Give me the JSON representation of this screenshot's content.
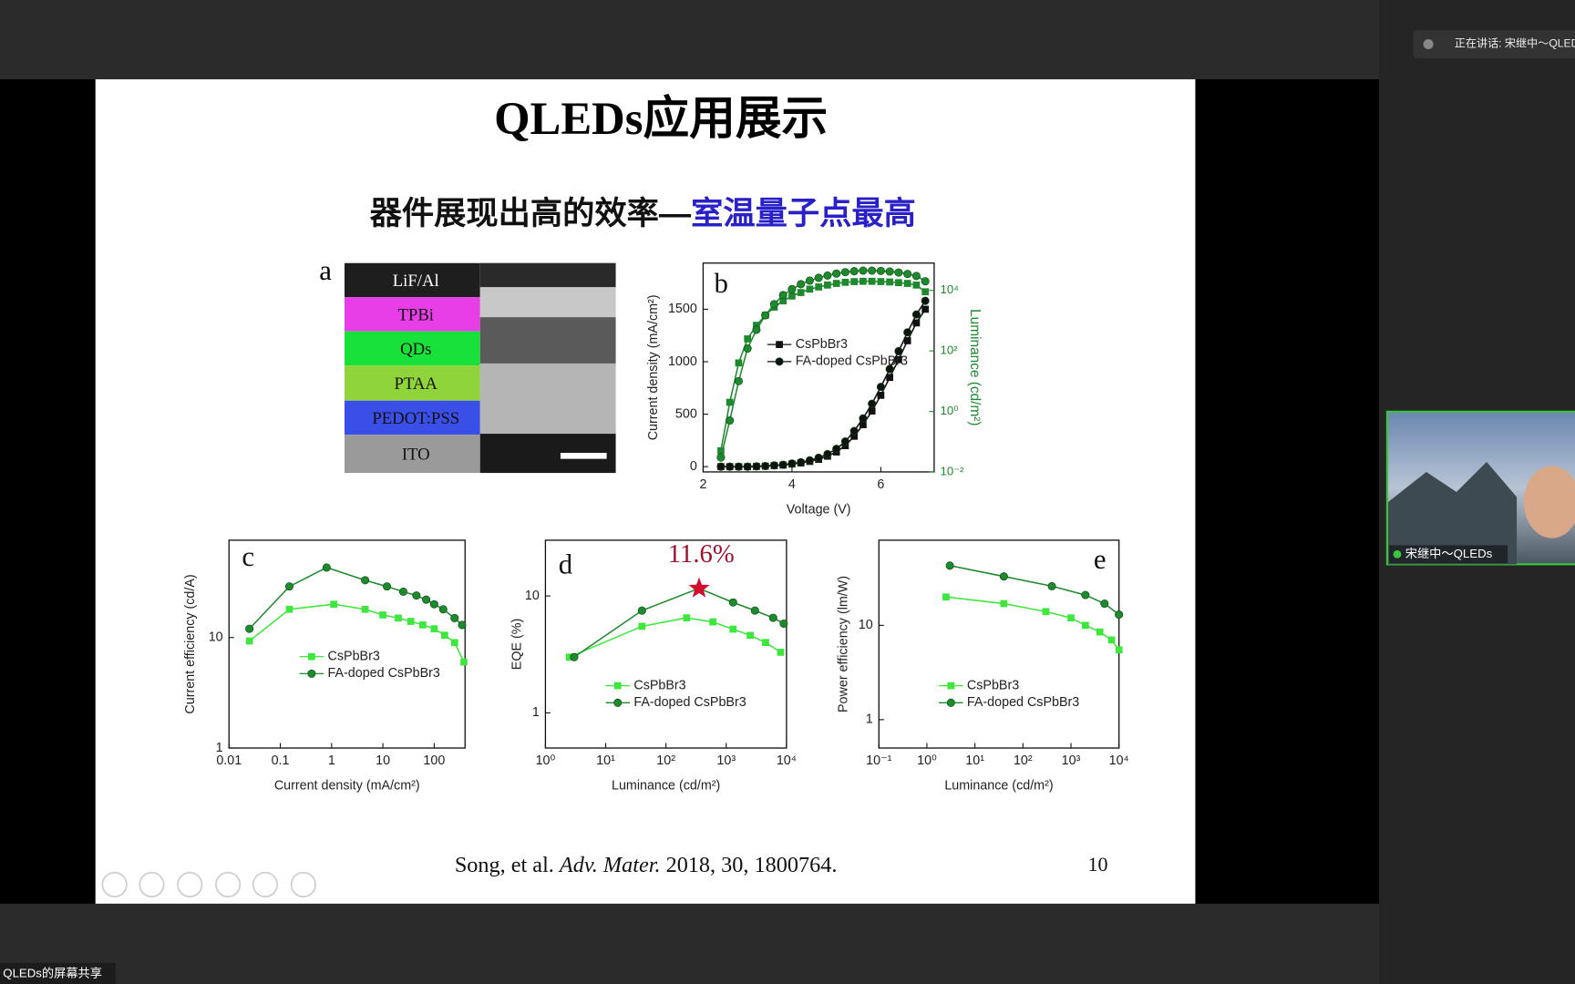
{
  "app": {
    "speaking": "正在讲话: 宋继中～QLEDs",
    "video_label": "宋继中～QLEDs",
    "share_label": "QLEDs的屏幕共享"
  },
  "slide": {
    "title": "QLEDs应用展示",
    "subtitle_black": "器件展现出高的效率—",
    "subtitle_blue": "室温量子点最高",
    "citation": [
      "Song, et al. ",
      "Adv. Mater.",
      "  2018, 30, 1800764."
    ],
    "page": 10,
    "panel_a": {
      "label": "a",
      "layers": [
        "LiF/Al",
        "TPBi",
        "QDs",
        "PTAA",
        "PEDOT:PSS",
        "ITO"
      ]
    }
  },
  "chart_data": [
    {
      "type": "line",
      "panel": "b",
      "xlabel": "Voltage (V)",
      "ylabel": "Current density (mA/cm²)",
      "y2label": "Luminance (cd/m²)",
      "xlim": [
        2,
        7.2
      ],
      "xticks": [
        2,
        4,
        6
      ],
      "ylim": [
        -50,
        1940
      ],
      "yticks": [
        0,
        500,
        1000,
        1500
      ],
      "y2scale": "log",
      "y2lim": [
        0.01,
        80000
      ],
      "y2ticks": [
        {
          "value": 0.01,
          "label": "10⁻²"
        },
        {
          "value": 1,
          "label": "10⁰"
        },
        {
          "value": 100,
          "label": "10²"
        },
        {
          "value": 10000,
          "label": "10⁴"
        }
      ],
      "legend": "center",
      "x": [
        2.4,
        2.6,
        2.8,
        3.0,
        3.2,
        3.4,
        3.6,
        3.8,
        4.0,
        4.2,
        4.4,
        4.6,
        4.8,
        5.0,
        5.2,
        5.4,
        5.6,
        5.8,
        6.0,
        6.2,
        6.4,
        6.6,
        6.8,
        7.0
      ],
      "series": [
        {
          "name": "CsPbBr3",
          "color": "#111111",
          "marker": "square",
          "values": [
            0,
            0,
            0,
            0,
            2,
            5,
            10,
            15,
            25,
            35,
            50,
            70,
            100,
            140,
            200,
            290,
            400,
            530,
            680,
            850,
            1020,
            1200,
            1370,
            1500
          ]
        },
        {
          "name": "FA-doped CsPbBr3",
          "color": "#111111",
          "marker": "circle",
          "values": [
            0,
            0,
            0,
            0,
            3,
            6,
            12,
            18,
            30,
            42,
            60,
            85,
            120,
            170,
            240,
            340,
            460,
            600,
            760,
            930,
            1100,
            1280,
            1450,
            1580
          ]
        },
        {
          "color": "#1e8a2e",
          "marker": "square",
          "axis": "y2",
          "values": [
            0.05,
            2,
            40,
            250,
            700,
            1500,
            2800,
            4500,
            6500,
            8500,
            11000,
            13000,
            15000,
            17000,
            18500,
            19500,
            20000,
            20000,
            19500,
            19000,
            18000,
            17000,
            15000,
            9000
          ]
        },
        {
          "color": "#1e8a2e",
          "marker": "circle",
          "axis": "y2",
          "values": [
            0.03,
            0.5,
            10,
            120,
            500,
            1500,
            3500,
            7000,
            11000,
            16000,
            21000,
            26000,
            31000,
            36000,
            40000,
            43000,
            45000,
            45000,
            44000,
            42000,
            39000,
            35000,
            30000,
            20000
          ]
        }
      ]
    },
    {
      "type": "line",
      "panel": "c",
      "xlabel": "Current density (mA/cm²)",
      "ylabel": "Current efficiency (cd/A)",
      "xscale": "log",
      "xlim": [
        0.01,
        400
      ],
      "xticks": [
        0.01,
        0.1,
        1,
        10,
        100
      ],
      "yscale": "log",
      "ylim": [
        1,
        76
      ],
      "yticks": [
        1,
        10
      ],
      "legend": "center left",
      "series": [
        {
          "name": "CsPbBr3",
          "color": "#3ee63e",
          "marker": "square",
          "x": [
            0.025,
            0.15,
            1.1,
            4.5,
            10,
            20,
            35,
            60,
            100,
            160,
            250,
            380
          ],
          "values": [
            9.3,
            18,
            20,
            18,
            16,
            15,
            14,
            13,
            12,
            10.5,
            9,
            6
          ]
        },
        {
          "name": "FA-doped CsPbBr3",
          "color": "#1e8a2e",
          "marker": "circle",
          "x": [
            0.025,
            0.15,
            0.8,
            4.5,
            12,
            25,
            45,
            70,
            100,
            150,
            250,
            350
          ],
          "values": [
            12,
            29,
            43,
            33,
            29,
            26,
            24,
            22,
            20,
            18,
            15,
            13
          ]
        }
      ]
    },
    {
      "type": "line",
      "panel": "d",
      "xlabel": "Luminance (cd/m²)",
      "ylabel": "EQE (%)",
      "xscale": "log",
      "xlim": [
        1,
        10000
      ],
      "xticks": [
        {
          "value": 1,
          "label": "10⁰"
        },
        {
          "value": 10,
          "label": "10¹"
        },
        {
          "value": 100,
          "label": "10²"
        },
        {
          "value": 1000,
          "label": "10³"
        },
        {
          "value": 10000,
          "label": "10⁴"
        }
      ],
      "yscale": "log",
      "ylim": [
        0.5,
        30
      ],
      "yticks": [
        1,
        10
      ],
      "legend": "lower left",
      "peak": {
        "label": "11.6%",
        "x": 355,
        "value": 11.6
      },
      "series": [
        {
          "name": "CsPbBr3",
          "color": "#3ee63e",
          "marker": "square",
          "x": [
            2.5,
            40,
            220,
            600,
            1300,
            2500,
            4500,
            8000
          ],
          "values": [
            3.0,
            5.5,
            6.5,
            6.0,
            5.2,
            4.6,
            4.0,
            3.3
          ]
        },
        {
          "name": "FA-doped CsPbBr3",
          "color": "#1e8a2e",
          "marker": "circle",
          "x": [
            3,
            40,
            355,
            1300,
            3000,
            6000,
            9000
          ],
          "values": [
            3.0,
            7.5,
            11.6,
            8.8,
            7.5,
            6.5,
            5.8
          ]
        }
      ]
    },
    {
      "type": "line",
      "panel": "e",
      "xlabel": "Luminance (cd/m²)",
      "ylabel": "Power efficiency (lm/W)",
      "xscale": "log",
      "xlim": [
        0.1,
        10000
      ],
      "xticks": [
        {
          "value": 0.1,
          "label": "10⁻¹"
        },
        {
          "value": 1,
          "label": "10⁰"
        },
        {
          "value": 10,
          "label": "10¹"
        },
        {
          "value": 100,
          "label": "10²"
        },
        {
          "value": 1000,
          "label": "10³"
        },
        {
          "value": 10000,
          "label": "10⁴"
        }
      ],
      "yscale": "log",
      "ylim": [
        0.5,
        80
      ],
      "yticks": [
        1,
        10
      ],
      "legend": "lower left",
      "series": [
        {
          "name": "CsPbBr3",
          "color": "#3ee63e",
          "marker": "square",
          "x": [
            2.5,
            40,
            300,
            1000,
            2000,
            4000,
            7000,
            10000
          ],
          "values": [
            20,
            17,
            14,
            12,
            10,
            8.5,
            7,
            5.5
          ]
        },
        {
          "name": "FA-doped CsPbBr3",
          "color": "#1e8a2e",
          "marker": "circle",
          "x": [
            3,
            40,
            400,
            2000,
            5000,
            10000
          ],
          "values": [
            43,
            33,
            26,
            21,
            17,
            13
          ]
        }
      ]
    }
  ]
}
